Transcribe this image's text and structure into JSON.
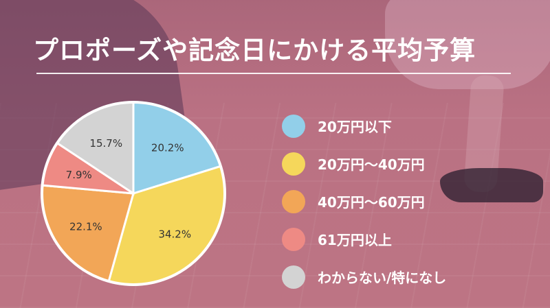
{
  "title": "プロポーズや記念日にかける平均予算",
  "chart_data": {
    "type": "pie",
    "title": "プロポーズや記念日にかける平均予算",
    "slices": [
      {
        "label": "20万円以下",
        "value": 20.2,
        "display": "20.2%",
        "color": "#92cfe9"
      },
      {
        "label": "20万円〜40万円",
        "value": 34.2,
        "display": "34.2%",
        "color": "#f5d75b"
      },
      {
        "label": "40万円〜60万円",
        "value": 22.1,
        "display": "22.1%",
        "color": "#f2a657"
      },
      {
        "label": "61万円以上",
        "value": 7.9,
        "display": "7.9%",
        "color": "#ee8a84"
      },
      {
        "label": "わからない/特になし",
        "value": 15.7,
        "display": "15.7%",
        "color": "#d3d3d3"
      }
    ],
    "legend_position": "right"
  }
}
